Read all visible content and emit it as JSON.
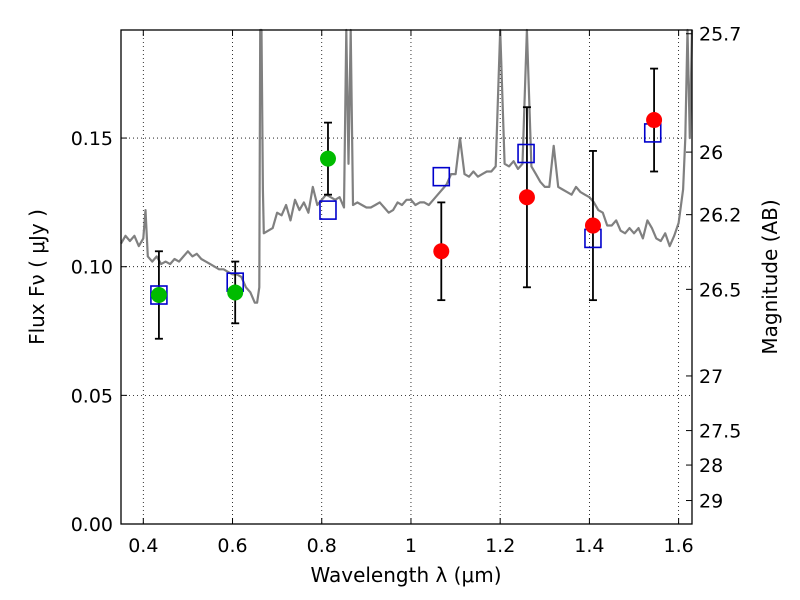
{
  "chart_data": {
    "type": "scatter",
    "title": "",
    "xlabel": "Wavelength  λ (μm)",
    "ylabel": "Flux  Fν  ( μJy )",
    "y2label": "Magnitude (AB)",
    "xlim": [
      0.35,
      1.63
    ],
    "ylim": [
      0.0,
      0.192
    ],
    "grid": true,
    "x_ticks": [
      "0.4",
      "0.6",
      "0.8",
      "1",
      "1.2",
      "1.4",
      "1.6"
    ],
    "y_ticks": [
      "0.00",
      "0.05",
      "0.10",
      "0.15"
    ],
    "mag_ticks": [
      "25.7",
      "26",
      "26.2",
      "26.5",
      "27",
      "27.5",
      "28",
      "29"
    ],
    "series": [
      {
        "kind": "spectrum",
        "color": "#808080",
        "x": [
          0.35,
          0.36,
          0.37,
          0.38,
          0.39,
          0.4,
          0.405,
          0.41,
          0.42,
          0.43,
          0.44,
          0.45,
          0.46,
          0.47,
          0.48,
          0.49,
          0.5,
          0.51,
          0.52,
          0.53,
          0.54,
          0.55,
          0.56,
          0.57,
          0.58,
          0.59,
          0.6,
          0.61,
          0.62,
          0.63,
          0.64,
          0.645,
          0.65,
          0.655,
          0.66,
          0.662,
          0.665,
          0.668,
          0.67,
          0.68,
          0.69,
          0.7,
          0.71,
          0.72,
          0.73,
          0.74,
          0.75,
          0.76,
          0.77,
          0.78,
          0.79,
          0.8,
          0.81,
          0.82,
          0.83,
          0.84,
          0.85,
          0.855,
          0.86,
          0.865,
          0.87,
          0.88,
          0.89,
          0.9,
          0.91,
          0.92,
          0.93,
          0.94,
          0.95,
          0.96,
          0.97,
          0.98,
          0.99,
          1.0,
          1.01,
          1.02,
          1.03,
          1.04,
          1.05,
          1.06,
          1.07,
          1.08,
          1.09,
          1.1,
          1.11,
          1.12,
          1.13,
          1.14,
          1.15,
          1.16,
          1.17,
          1.18,
          1.19,
          1.2,
          1.21,
          1.22,
          1.23,
          1.24,
          1.25,
          1.26,
          1.27,
          1.28,
          1.29,
          1.3,
          1.31,
          1.32,
          1.33,
          1.34,
          1.35,
          1.36,
          1.37,
          1.38,
          1.39,
          1.4,
          1.41,
          1.42,
          1.43,
          1.44,
          1.45,
          1.46,
          1.47,
          1.48,
          1.49,
          1.5,
          1.51,
          1.52,
          1.53,
          1.54,
          1.55,
          1.56,
          1.57,
          1.58,
          1.59,
          1.6,
          1.61,
          1.615,
          1.62,
          1.625,
          1.63
        ],
        "y": [
          0.109,
          0.112,
          0.11,
          0.112,
          0.108,
          0.111,
          0.122,
          0.104,
          0.102,
          0.104,
          0.101,
          0.102,
          0.101,
          0.103,
          0.102,
          0.104,
          0.106,
          0.104,
          0.105,
          0.103,
          0.102,
          0.101,
          0.1,
          0.099,
          0.099,
          0.098,
          0.097,
          0.097,
          0.096,
          0.092,
          0.09,
          0.088,
          0.086,
          0.086,
          0.092,
          0.192,
          0.192,
          0.13,
          0.113,
          0.114,
          0.115,
          0.121,
          0.12,
          0.124,
          0.118,
          0.126,
          0.122,
          0.125,
          0.121,
          0.131,
          0.124,
          0.126,
          0.128,
          0.127,
          0.126,
          0.127,
          0.123,
          0.192,
          0.14,
          0.192,
          0.124,
          0.125,
          0.124,
          0.123,
          0.123,
          0.124,
          0.125,
          0.123,
          0.121,
          0.122,
          0.125,
          0.124,
          0.126,
          0.126,
          0.124,
          0.125,
          0.125,
          0.124,
          0.126,
          0.128,
          0.13,
          0.132,
          0.136,
          0.136,
          0.15,
          0.136,
          0.135,
          0.137,
          0.135,
          0.136,
          0.137,
          0.137,
          0.139,
          0.192,
          0.14,
          0.139,
          0.141,
          0.138,
          0.14,
          0.192,
          0.139,
          0.136,
          0.133,
          0.131,
          0.131,
          0.147,
          0.131,
          0.13,
          0.129,
          0.128,
          0.131,
          0.129,
          0.128,
          0.127,
          0.125,
          0.122,
          0.121,
          0.116,
          0.116,
          0.118,
          0.114,
          0.113,
          0.115,
          0.113,
          0.115,
          0.111,
          0.118,
          0.115,
          0.111,
          0.11,
          0.113,
          0.108,
          0.112,
          0.117,
          0.13,
          0.15,
          0.192,
          0.15,
          0.192
        ]
      },
      {
        "kind": "model",
        "color": "#0000cc",
        "x": [
          0.435,
          0.606,
          0.814,
          1.068,
          1.258,
          1.408,
          1.542
        ],
        "y": [
          0.089,
          0.094,
          0.122,
          0.135,
          0.144,
          0.111,
          0.152
        ]
      },
      {
        "kind": "detection",
        "color": "#00bb00",
        "x": [
          0.435,
          0.606,
          0.814
        ],
        "y": [
          0.089,
          0.09,
          0.142
        ],
        "err": [
          0.017,
          0.012,
          0.014
        ]
      },
      {
        "kind": "detection",
        "color": "#ff0000",
        "x": [
          1.068,
          1.26,
          1.408,
          1.545
        ],
        "y": [
          0.106,
          0.127,
          0.116,
          0.157
        ],
        "err": [
          0.019,
          0.035,
          0.029,
          0.02
        ]
      }
    ]
  }
}
